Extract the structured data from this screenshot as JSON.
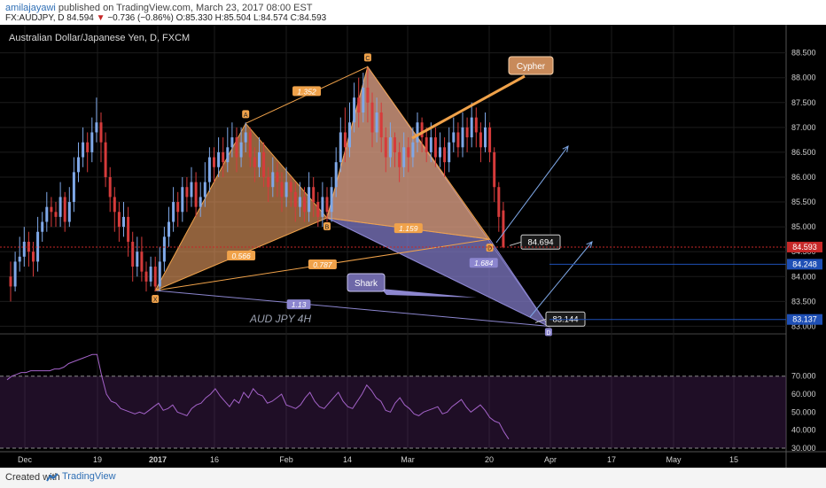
{
  "header": {
    "user": "amilajayawi",
    "published": "published on TradingView.com, March 23, 2017 08:00 EST",
    "symbol": "FX:AUDJPY, D",
    "last": "84.594",
    "change": "−0.736 (−0.86%)",
    "open": "O:85.330",
    "high": "H:85.504",
    "low": "L:84.574",
    "close": "C:84.593"
  },
  "footer": {
    "created_with": "Created with",
    "brand": "TradingView"
  },
  "chart_data": {
    "type": "candlestick",
    "title": "Australian Dollar/Japanese Yen, D, FXCM",
    "watermark": "AUD JPY 4H",
    "y_ticks": [
      "88.500",
      "88.000",
      "87.500",
      "87.000",
      "86.500",
      "86.000",
      "85.500",
      "85.000",
      "84.500",
      "84.000",
      "83.500",
      "83.000"
    ],
    "ylim": [
      82.9,
      88.85
    ],
    "x_ticks": [
      "Dec",
      "19",
      "2017",
      "16",
      "Feb",
      "14",
      "Mar",
      "20",
      "Apr",
      "17",
      "May",
      "15"
    ],
    "price_labels": [
      {
        "text": "84.593",
        "price": 84.593,
        "color": "#c62828"
      },
      {
        "text": "84.248",
        "price": 84.248,
        "color": "#1e4fb5"
      },
      {
        "text": "83.137",
        "price": 83.137,
        "color": "#1e4fb5"
      }
    ],
    "cypher_pattern": {
      "name": "Cypher",
      "points": [
        {
          "label": "X",
          "bar": 32,
          "price": 83.72
        },
        {
          "label": "A",
          "bar": 52,
          "price": 87.08
        },
        {
          "label": "B",
          "bar": 70,
          "price": 85.18
        },
        {
          "label": "C",
          "bar": 79,
          "price": 88.22
        },
        {
          "label": "D",
          "bar": 106,
          "price": 84.75
        }
      ],
      "ratios": [
        {
          "text": "1.352",
          "color": "#f0a24a"
        },
        {
          "text": "0.566",
          "color": "#f0a24a"
        },
        {
          "text": "1.159",
          "color": "#f0a24a"
        },
        {
          "text": "0.787",
          "color": "#f0a24a"
        }
      ]
    },
    "shark_pattern": {
      "name": "Shark",
      "points": [
        {
          "label": "X",
          "bar": 32,
          "price": 83.72
        },
        {
          "label": "C",
          "bar": 79,
          "price": 88.22
        },
        {
          "label": "D",
          "bar": 119,
          "price": 83.0
        }
      ],
      "ratios": [
        {
          "text": "1.684",
          "color": "#8c86cf"
        },
        {
          "text": "1.13",
          "color": "#8c86cf"
        }
      ]
    },
    "callouts": [
      {
        "text": "84.694",
        "price": 84.694
      },
      {
        "text": "83.144",
        "price": 83.144
      }
    ],
    "candles": [
      [
        0,
        84.0,
        83.8,
        84.3,
        83.5
      ],
      [
        1,
        83.8,
        84.3,
        84.5,
        83.7
      ],
      [
        2,
        84.3,
        84.4,
        84.8,
        84.1
      ],
      [
        3,
        84.4,
        84.7,
        85.0,
        84.2
      ],
      [
        4,
        84.7,
        84.5,
        84.9,
        84.2
      ],
      [
        5,
        84.5,
        84.3,
        84.7,
        84.0
      ],
      [
        6,
        84.3,
        84.9,
        85.2,
        84.1
      ],
      [
        7,
        84.9,
        85.1,
        85.3,
        84.7
      ],
      [
        8,
        85.1,
        85.4,
        85.7,
        84.9
      ],
      [
        9,
        85.4,
        85.3,
        85.6,
        85.0
      ],
      [
        10,
        85.3,
        85.2,
        85.5,
        85.0
      ],
      [
        11,
        85.2,
        85.6,
        85.9,
        85.0
      ],
      [
        12,
        85.6,
        85.1,
        85.7,
        84.9
      ],
      [
        13,
        85.1,
        85.5,
        85.8,
        85.0
      ],
      [
        14,
        85.5,
        86.1,
        86.4,
        85.3
      ],
      [
        15,
        86.1,
        86.4,
        86.7,
        85.9
      ],
      [
        16,
        86.4,
        86.7,
        87.0,
        86.2
      ],
      [
        17,
        86.7,
        86.5,
        86.9,
        86.1
      ],
      [
        18,
        86.5,
        86.9,
        87.2,
        86.3
      ],
      [
        19,
        86.9,
        87.1,
        87.6,
        86.7
      ],
      [
        20,
        87.1,
        86.7,
        87.3,
        86.3
      ],
      [
        21,
        86.7,
        86.0,
        86.9,
        85.8
      ],
      [
        22,
        86.0,
        85.6,
        86.2,
        85.3
      ],
      [
        23,
        85.6,
        85.3,
        85.8,
        84.9
      ],
      [
        24,
        85.3,
        85.0,
        85.5,
        84.7
      ],
      [
        25,
        85.0,
        85.2,
        85.5,
        84.8
      ],
      [
        26,
        85.2,
        84.7,
        85.4,
        84.4
      ],
      [
        27,
        84.7,
        84.2,
        84.9,
        83.9
      ],
      [
        28,
        84.2,
        84.5,
        84.8,
        84.0
      ],
      [
        29,
        84.5,
        84.1,
        84.8,
        83.9
      ],
      [
        30,
        84.1,
        83.9,
        84.3,
        83.7
      ],
      [
        31,
        83.9,
        84.2,
        84.4,
        83.8
      ],
      [
        32,
        84.2,
        83.8,
        84.4,
        83.7
      ],
      [
        33,
        83.8,
        84.3,
        84.6,
        83.7
      ],
      [
        34,
        84.3,
        84.8,
        85.0,
        84.1
      ],
      [
        35,
        84.8,
        85.1,
        85.4,
        84.6
      ],
      [
        36,
        85.1,
        85.5,
        85.8,
        84.9
      ],
      [
        37,
        85.5,
        85.3,
        85.7,
        85.0
      ],
      [
        38,
        85.3,
        85.8,
        86.0,
        85.1
      ],
      [
        39,
        85.8,
        85.6,
        86.0,
        85.3
      ],
      [
        40,
        85.6,
        85.9,
        86.2,
        85.4
      ],
      [
        41,
        85.9,
        85.4,
        86.1,
        85.2
      ],
      [
        42,
        85.4,
        85.6,
        85.9,
        85.2
      ],
      [
        43,
        85.6,
        85.9,
        86.3,
        85.4
      ],
      [
        44,
        85.9,
        86.4,
        86.6,
        85.7
      ],
      [
        45,
        86.4,
        86.2,
        86.6,
        85.9
      ],
      [
        46,
        86.2,
        86.5,
        86.8,
        86.0
      ],
      [
        47,
        86.5,
        86.3,
        86.8,
        86.0
      ],
      [
        48,
        86.3,
        86.6,
        87.0,
        86.1
      ],
      [
        49,
        86.6,
        86.8,
        87.1,
        86.4
      ],
      [
        50,
        86.8,
        86.4,
        87.0,
        86.1
      ],
      [
        51,
        86.4,
        86.7,
        87.0,
        86.2
      ],
      [
        52,
        86.7,
        86.9,
        87.1,
        86.5
      ],
      [
        53,
        86.9,
        86.4,
        87.0,
        86.2
      ],
      [
        54,
        86.4,
        86.2,
        86.6,
        85.9
      ],
      [
        55,
        86.2,
        86.5,
        86.8,
        86.0
      ],
      [
        56,
        86.5,
        86.0,
        86.7,
        85.8
      ],
      [
        57,
        86.0,
        85.8,
        86.2,
        85.5
      ],
      [
        58,
        85.8,
        86.1,
        86.4,
        85.6
      ],
      [
        59,
        86.1,
        85.9,
        86.3,
        85.6
      ],
      [
        60,
        85.9,
        85.6,
        86.1,
        85.3
      ],
      [
        61,
        85.6,
        85.9,
        86.2,
        85.4
      ],
      [
        62,
        85.9,
        85.7,
        86.0,
        85.4
      ],
      [
        63,
        85.7,
        85.4,
        85.9,
        85.1
      ],
      [
        64,
        85.4,
        85.6,
        85.9,
        85.2
      ],
      [
        65,
        85.6,
        85.3,
        85.8,
        85.1
      ],
      [
        66,
        85.3,
        85.8,
        86.1,
        85.1
      ],
      [
        67,
        85.8,
        85.5,
        86.0,
        85.2
      ],
      [
        68,
        85.5,
        85.2,
        85.7,
        85.0
      ],
      [
        69,
        85.2,
        85.6,
        85.9,
        85.0
      ],
      [
        70,
        85.6,
        85.3,
        85.8,
        85.1
      ],
      [
        71,
        85.3,
        85.8,
        86.0,
        85.1
      ],
      [
        72,
        85.8,
        86.3,
        86.6,
        85.6
      ],
      [
        73,
        86.3,
        86.9,
        87.2,
        86.1
      ],
      [
        74,
        86.9,
        86.6,
        87.4,
        86.3
      ],
      [
        75,
        86.6,
        87.1,
        87.5,
        86.4
      ],
      [
        76,
        87.1,
        87.6,
        87.9,
        86.9
      ],
      [
        77,
        87.6,
        87.3,
        88.0,
        87.0
      ],
      [
        78,
        87.3,
        87.8,
        88.1,
        87.1
      ],
      [
        79,
        87.8,
        87.5,
        88.2,
        87.1
      ],
      [
        80,
        87.5,
        86.9,
        87.7,
        86.6
      ],
      [
        81,
        86.9,
        87.3,
        87.6,
        86.7
      ],
      [
        82,
        87.3,
        86.8,
        87.5,
        86.5
      ],
      [
        83,
        86.8,
        86.4,
        87.0,
        86.1
      ],
      [
        84,
        86.4,
        86.8,
        87.1,
        86.2
      ],
      [
        85,
        86.8,
        86.5,
        86.9,
        86.2
      ],
      [
        86,
        86.5,
        86.2,
        86.7,
        85.9
      ],
      [
        87,
        86.2,
        86.6,
        86.9,
        86.0
      ],
      [
        88,
        86.6,
        86.4,
        86.8,
        86.1
      ],
      [
        89,
        86.4,
        86.7,
        87.0,
        86.2
      ],
      [
        90,
        86.7,
        87.1,
        87.3,
        86.5
      ],
      [
        91,
        87.1,
        86.8,
        87.2,
        86.5
      ],
      [
        92,
        86.8,
        86.5,
        87.0,
        86.3
      ],
      [
        93,
        86.5,
        86.8,
        87.1,
        86.3
      ],
      [
        94,
        86.8,
        86.4,
        87.0,
        86.2
      ],
      [
        95,
        86.4,
        86.6,
        86.9,
        86.2
      ],
      [
        96,
        86.6,
        86.3,
        86.8,
        86.0
      ],
      [
        97,
        86.3,
        86.7,
        87.0,
        86.1
      ],
      [
        98,
        86.7,
        86.9,
        87.2,
        86.5
      ],
      [
        99,
        86.9,
        86.6,
        87.1,
        86.4
      ],
      [
        100,
        86.6,
        87.0,
        87.3,
        86.4
      ],
      [
        101,
        87.0,
        86.8,
        87.2,
        86.5
      ],
      [
        102,
        86.8,
        87.2,
        87.5,
        86.6
      ],
      [
        103,
        87.2,
        86.9,
        87.4,
        86.6
      ],
      [
        104,
        86.9,
        86.6,
        87.1,
        86.3
      ],
      [
        105,
        86.6,
        87.0,
        87.3,
        86.5
      ],
      [
        106,
        87.0,
        86.5,
        87.1,
        86.3
      ],
      [
        107,
        86.5,
        85.8,
        86.6,
        85.5
      ],
      [
        108,
        85.8,
        85.2,
        85.9,
        84.9
      ],
      [
        109,
        85.33,
        84.59,
        85.5,
        84.57
      ]
    ],
    "rsi": {
      "ticks": [
        "70.000",
        "60.000",
        "50.000",
        "40.000",
        "30.000"
      ],
      "ylim": [
        28,
        92
      ],
      "upper_band": 70,
      "lower_band": 30,
      "values": [
        68,
        70,
        71,
        72,
        72,
        73,
        73,
        73,
        73,
        73,
        74,
        74,
        75,
        77,
        78,
        79,
        80,
        81,
        82,
        82,
        70,
        60,
        56,
        55,
        52,
        51,
        50,
        49,
        50,
        49,
        51,
        53,
        55,
        51,
        52,
        54,
        50,
        49,
        48,
        52,
        54,
        55,
        58,
        60,
        63,
        59,
        56,
        53,
        57,
        55,
        61,
        58,
        63,
        60,
        59,
        55,
        56,
        58,
        60,
        54,
        53,
        52,
        54,
        58,
        61,
        56,
        53,
        52,
        55,
        58,
        61,
        56,
        53,
        52,
        56,
        60,
        65,
        62,
        58,
        56,
        51,
        50,
        55,
        58,
        54,
        52,
        49,
        48,
        50,
        51,
        52,
        53,
        49,
        50,
        53,
        55,
        57,
        53,
        50,
        52,
        54,
        51,
        47,
        45,
        44,
        39,
        35
      ]
    }
  }
}
